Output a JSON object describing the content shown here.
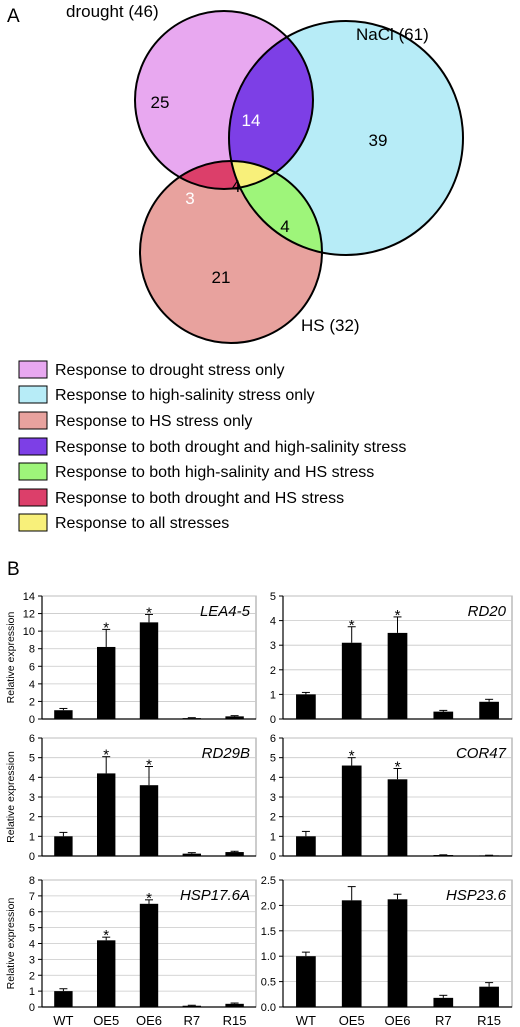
{
  "panel_a": {
    "label": "A",
    "sets": [
      {
        "name": "drought (46)",
        "color": "#e8a8f0"
      },
      {
        "name": "NaCl (61)",
        "color": "#b7ecf7"
      },
      {
        "name": "HS (32)",
        "color": "#e8a29e"
      }
    ],
    "regions": [
      {
        "id": "drought-only",
        "value": "25",
        "color": "#e8a8f0"
      },
      {
        "id": "nacl-only",
        "value": "39",
        "color": "#b7ecf7"
      },
      {
        "id": "hs-only",
        "value": "21",
        "color": "#e8a29e"
      },
      {
        "id": "drought-nacl",
        "value": "14",
        "color": "#7d3fe6"
      },
      {
        "id": "nacl-hs",
        "value": "4",
        "color": "#9ef57a"
      },
      {
        "id": "drought-hs",
        "value": "3",
        "color": "#dc3f6a"
      },
      {
        "id": "all",
        "value": "4",
        "color": "#f8f07a"
      }
    ],
    "legend": [
      {
        "label": "Response to drought stress only",
        "color": "#e8a8f0"
      },
      {
        "label": "Response to high-salinity stress only",
        "color": "#b7ecf7"
      },
      {
        "label": "Response to HS stress only",
        "color": "#e8a29e"
      },
      {
        "label": "Response to both drought and high-salinity stress",
        "color": "#7d3fe6"
      },
      {
        "label": "Response to both high-salinity and HS stress",
        "color": "#9ef57a"
      },
      {
        "label": "Response to both drought and HS stress",
        "color": "#dc3f6a"
      },
      {
        "label": "Response to all stresses",
        "color": "#f8f07a"
      }
    ]
  },
  "panel_b": {
    "label": "B"
  },
  "chart_data": [
    {
      "type": "bar",
      "title": "LEA4-5",
      "ylabel": "Relative expression",
      "categories": [
        "WT",
        "OE5",
        "OE6",
        "R7",
        "R15"
      ],
      "values": [
        1.0,
        8.2,
        11.0,
        0.1,
        0.3
      ],
      "errors": [
        0.2,
        2.0,
        0.9,
        0.05,
        0.08
      ],
      "significant": [
        false,
        true,
        true,
        false,
        false
      ],
      "ylim": [
        0,
        14
      ],
      "yticks": [
        "0",
        "2",
        "4",
        "6",
        "8",
        "10",
        "12",
        "14"
      ]
    },
    {
      "type": "bar",
      "title": "RD20",
      "ylabel": "",
      "categories": [
        "WT",
        "OE5",
        "OE6",
        "R7",
        "R15"
      ],
      "values": [
        1.0,
        3.1,
        3.5,
        0.3,
        0.7
      ],
      "errors": [
        0.08,
        0.65,
        0.65,
        0.05,
        0.1
      ],
      "significant": [
        false,
        true,
        true,
        false,
        false
      ],
      "ylim": [
        0,
        5
      ],
      "yticks": [
        "0",
        "1",
        "2",
        "3",
        "4",
        "5"
      ]
    },
    {
      "type": "bar",
      "title": "RD29B",
      "ylabel": "Relative expression",
      "categories": [
        "WT",
        "OE5",
        "OE6",
        "R7",
        "R15"
      ],
      "values": [
        1.0,
        4.2,
        3.6,
        0.12,
        0.2
      ],
      "errors": [
        0.2,
        0.85,
        0.95,
        0.05,
        0.04
      ],
      "significant": [
        false,
        true,
        true,
        false,
        false
      ],
      "ylim": [
        0,
        6
      ],
      "yticks": [
        "0",
        "1",
        "2",
        "3",
        "4",
        "5",
        "6"
      ]
    },
    {
      "type": "bar",
      "title": "COR47",
      "ylabel": "",
      "categories": [
        "WT",
        "OE5",
        "OE6",
        "R7",
        "R15"
      ],
      "values": [
        1.0,
        4.6,
        3.9,
        0.05,
        0.03
      ],
      "errors": [
        0.25,
        0.4,
        0.55,
        0.01,
        0.01
      ],
      "significant": [
        false,
        true,
        true,
        false,
        false
      ],
      "ylim": [
        0,
        6
      ],
      "yticks": [
        "0",
        "1",
        "2",
        "3",
        "4",
        "5",
        "6"
      ]
    },
    {
      "type": "bar",
      "title": "HSP17.6A",
      "ylabel": "Relative expression",
      "categories": [
        "WT",
        "OE5",
        "OE6",
        "R7",
        "R15"
      ],
      "values": [
        1.0,
        4.2,
        6.5,
        0.08,
        0.2
      ],
      "errors": [
        0.15,
        0.2,
        0.25,
        0.03,
        0.05
      ],
      "significant": [
        false,
        true,
        true,
        false,
        false
      ],
      "ylim": [
        0,
        8
      ],
      "yticks": [
        "0",
        "1",
        "2",
        "3",
        "4",
        "5",
        "6",
        "7",
        "8"
      ]
    },
    {
      "type": "bar",
      "title": "HSP23.6",
      "ylabel": "",
      "categories": [
        "WT",
        "OE5",
        "OE6",
        "R7",
        "R15"
      ],
      "values": [
        1.0,
        2.1,
        2.12,
        0.18,
        0.4
      ],
      "errors": [
        0.08,
        0.27,
        0.1,
        0.05,
        0.08
      ],
      "significant": [
        false,
        false,
        false,
        false,
        false
      ],
      "ylim": [
        0,
        2.5
      ],
      "yticks": [
        "0.0",
        "0.5",
        "1.0",
        "1.5",
        "2.0",
        "2.5"
      ]
    }
  ]
}
